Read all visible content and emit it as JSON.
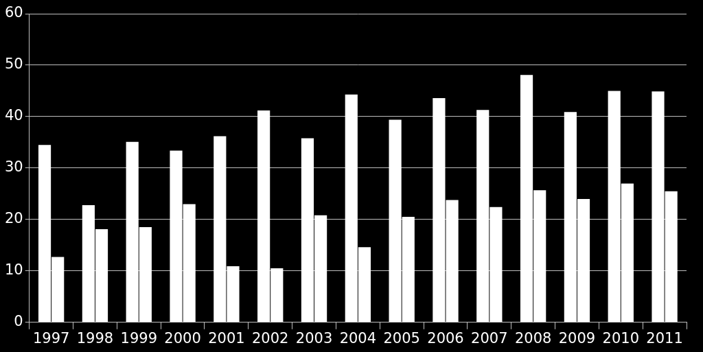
{
  "chart_data": {
    "type": "bar",
    "categories": [
      "1997",
      "1998",
      "1999",
      "2000",
      "2001",
      "2002",
      "2003",
      "2004",
      "2005",
      "2006",
      "2007",
      "2008",
      "2009",
      "2010",
      "2011"
    ],
    "series": [
      {
        "color": "#ffffff",
        "values": [
          34.5,
          22.8,
          35.1,
          33.4,
          36.2,
          41.2,
          35.8,
          44.3,
          39.4,
          43.6,
          41.3,
          48.1,
          40.9,
          45.0,
          44.9
        ]
      },
      {
        "color": "#ffffff",
        "values": [
          12.7,
          18.1,
          18.5,
          23.0,
          10.9,
          10.5,
          20.8,
          14.6,
          20.5,
          23.8,
          22.4,
          25.7,
          24.0,
          27.0,
          25.5
        ]
      }
    ],
    "ylim": [
      0,
      60
    ],
    "yticks": [
      0,
      10,
      20,
      30,
      40,
      50,
      60
    ],
    "grid": true
  }
}
